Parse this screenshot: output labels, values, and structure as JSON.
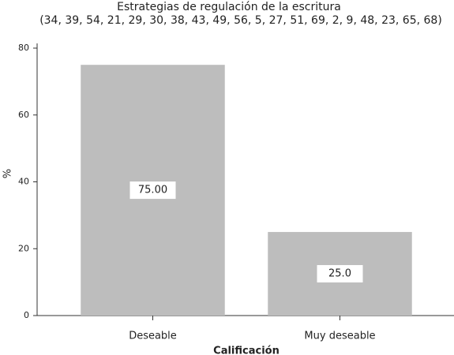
{
  "chart_data": {
    "type": "bar",
    "title": "Estrategias de regulación de la escritura",
    "subtitle": "(34, 39, 54, 21, 29, 30, 38, 43, 49, 56, 5, 27, 51, 69, 2, 9, 48, 23, 65, 68)",
    "x_label": "Calificación",
    "y_label": "%",
    "categories": [
      "Deseable",
      "Muy deseable"
    ],
    "values": [
      75,
      25
    ],
    "value_labels": [
      "75.00",
      "25.0"
    ],
    "color": "#bdbdbd",
    "ylim": [
      0,
      80
    ],
    "yticks": [
      0,
      20,
      40,
      60,
      80
    ]
  }
}
